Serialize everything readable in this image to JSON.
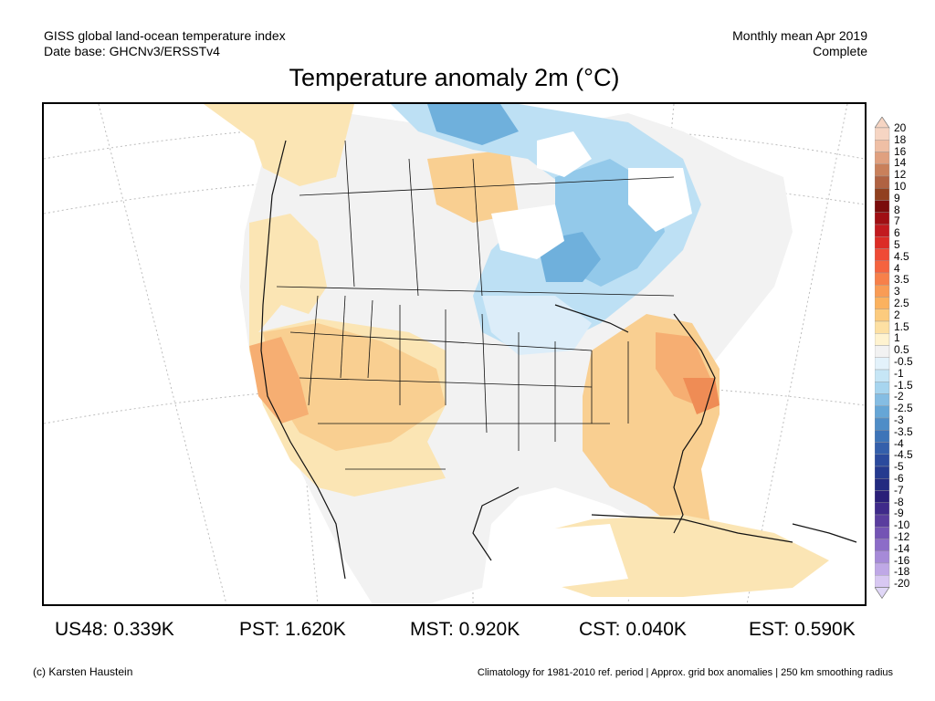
{
  "header": {
    "line1_left": "GISS global land-ocean temperature index",
    "line2_left": "Date base: GHCNv3/ERSSTv4",
    "line1_right": "Monthly mean Apr 2019",
    "line2_right": "Complete"
  },
  "title": "Temperature anomaly 2m (°C)",
  "colorbar": {
    "labels": [
      "20",
      "18",
      "16",
      "14",
      "12",
      "10",
      "9",
      "8",
      "7",
      "6",
      "5",
      "4.5",
      "4",
      "3.5",
      "3",
      "2.5",
      "2",
      "1.5",
      "1",
      "0.5",
      "-0.5",
      "-1",
      "-1.5",
      "-2",
      "-2.5",
      "-3",
      "-3.5",
      "-4",
      "-4.5",
      "-5",
      "-6",
      "-7",
      "-8",
      "-9",
      "-10",
      "-12",
      "-14",
      "-16",
      "-18",
      "-20"
    ],
    "colors": [
      "#f6d5c3",
      "#efbfa5",
      "#e0a07f",
      "#c9805b",
      "#b06242",
      "#91401f",
      "#7a0c0c",
      "#a00f14",
      "#c21a1f",
      "#dc2c26",
      "#ef4a35",
      "#f5633f",
      "#f7804a",
      "#f99c55",
      "#fbb25f",
      "#fccb7e",
      "#fde0a3",
      "#fff3d0",
      "#f2f2f2",
      "#e3f2fb",
      "#c6e6f6",
      "#a7d5ef",
      "#85bde3",
      "#66a6d6",
      "#4f8dc7",
      "#3d74b8",
      "#345fab",
      "#2b4a9d",
      "#253a8f",
      "#222a80",
      "#2a1f78",
      "#3f2a8a",
      "#5a3d9e",
      "#7454b4",
      "#8c6cc8",
      "#a68ad8",
      "#bfa8e6",
      "#d8c8f2"
    ],
    "arrow_top_color": "#f6d5c3",
    "arrow_bottom_color": "#e0d7f7"
  },
  "map_colors": {
    "ocean": "#ffffff",
    "neutral": "#f2f2f2",
    "warm1": "#fbe5b4",
    "warm2": "#f9cf91",
    "warm3": "#f6ae72",
    "warm4": "#ef8c55",
    "cool1": "#dcedf9",
    "cool2": "#bde0f4",
    "cool3": "#93c9ea",
    "cool4": "#6fb0dc",
    "line": "#111111",
    "grid": "#bbbbbb"
  },
  "stats": [
    {
      "label": "US48: 0.339K"
    },
    {
      "label": "PST: 1.620K"
    },
    {
      "label": "MST: 0.920K"
    },
    {
      "label": "CST: 0.040K"
    },
    {
      "label": "EST: 0.590K"
    }
  ],
  "footer": {
    "left": "(c) Karsten Haustein",
    "right": "Climatology for 1981-2010 ref. period | Approx. grid box anomalies | 250 km smoothing radius"
  }
}
